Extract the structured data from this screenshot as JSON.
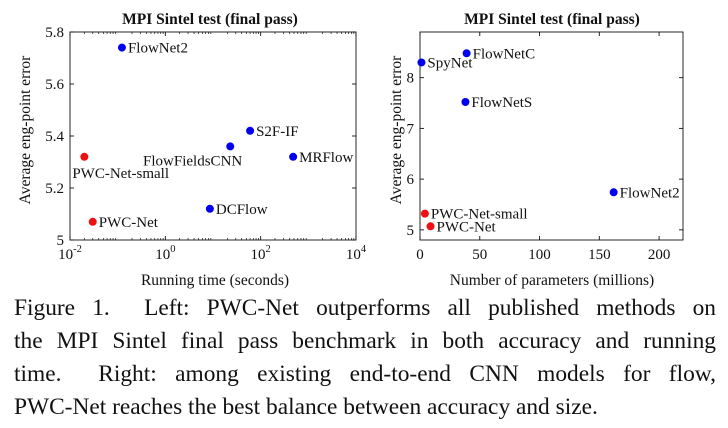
{
  "chart_data": [
    {
      "type": "scatter",
      "title": "MPI Sintel test (final pass)",
      "xlabel": "Running time (seconds)",
      "ylabel": "Average eng-point error",
      "x_scale": "log",
      "xlim": [
        0.01,
        10000
      ],
      "ylim": [
        5.0,
        5.8
      ],
      "x_ticks": [
        0.01,
        1,
        100,
        10000
      ],
      "x_tick_labels": [
        {
          "base": "10",
          "exp": "-2"
        },
        {
          "base": "10",
          "exp": "0"
        },
        {
          "base": "10",
          "exp": "2"
        },
        {
          "base": "10",
          "exp": "4"
        }
      ],
      "y_ticks": [
        5,
        5.2,
        5.4,
        5.6,
        5.8
      ],
      "y_tick_labels": [
        "5",
        "5.2",
        "5.4",
        "5.6",
        "5.8"
      ],
      "points": [
        {
          "label": "FlowNet2",
          "x": 0.123,
          "y": 5.74,
          "color": "#0000ee",
          "label_pos": "right"
        },
        {
          "label": "S2F-IF",
          "x": 60,
          "y": 5.42,
          "color": "#0000ee",
          "label_pos": "right"
        },
        {
          "label": "FlowFieldsCNN",
          "x": 23,
          "y": 5.36,
          "color": "#0000ee",
          "label_pos": "below-left"
        },
        {
          "label": "MRFlow",
          "x": 480,
          "y": 5.32,
          "color": "#0000ee",
          "label_pos": "right"
        },
        {
          "label": "DCFlow",
          "x": 8.6,
          "y": 5.12,
          "color": "#0000ee",
          "label_pos": "right"
        },
        {
          "label": "PWC-Net-small",
          "x": 0.02,
          "y": 5.32,
          "color": "#ee1111",
          "label_pos": "below"
        },
        {
          "label": "PWC-Net",
          "x": 0.03,
          "y": 5.07,
          "color": "#ee1111",
          "label_pos": "right"
        }
      ]
    },
    {
      "type": "scatter",
      "title": "MPI Sintel test (final pass)",
      "xlabel": "Number of parameters (millions)",
      "ylabel": "Average eng-point error",
      "xlim": [
        0,
        220
      ],
      "ylim": [
        4.8,
        8.9
      ],
      "x_ticks": [
        0,
        50,
        100,
        150,
        200
      ],
      "x_tick_labels": [
        "0",
        "50",
        "100",
        "150",
        "200"
      ],
      "y_ticks": [
        5,
        6,
        7,
        8
      ],
      "y_tick_labels": [
        "5",
        "6",
        "7",
        "8"
      ],
      "points": [
        {
          "label": "SpyNet",
          "x": 1.2,
          "y": 8.3,
          "color": "#0000ee",
          "label_pos": "right"
        },
        {
          "label": "FlowNetC",
          "x": 39,
          "y": 8.48,
          "color": "#0000ee",
          "label_pos": "right"
        },
        {
          "label": "FlowNetS",
          "x": 38,
          "y": 7.52,
          "color": "#0000ee",
          "label_pos": "right"
        },
        {
          "label": "FlowNet2",
          "x": 162,
          "y": 5.74,
          "color": "#0000ee",
          "label_pos": "right"
        },
        {
          "label": "PWC-Net-small",
          "x": 4.1,
          "y": 5.32,
          "color": "#ee1111",
          "label_pos": "right"
        },
        {
          "label": "PWC-Net",
          "x": 8.8,
          "y": 5.07,
          "color": "#ee1111",
          "label_pos": "right"
        }
      ]
    }
  ],
  "caption": {
    "lines": [
      "Figure 1.  Left: PWC-Net outperforms all published methods on",
      "the MPI Sintel final pass benchmark in both accuracy and running",
      "time.  Right: among existing end-to-end CNN models for flow,",
      "PWC-Net reaches the best balance between accuracy and size."
    ]
  }
}
